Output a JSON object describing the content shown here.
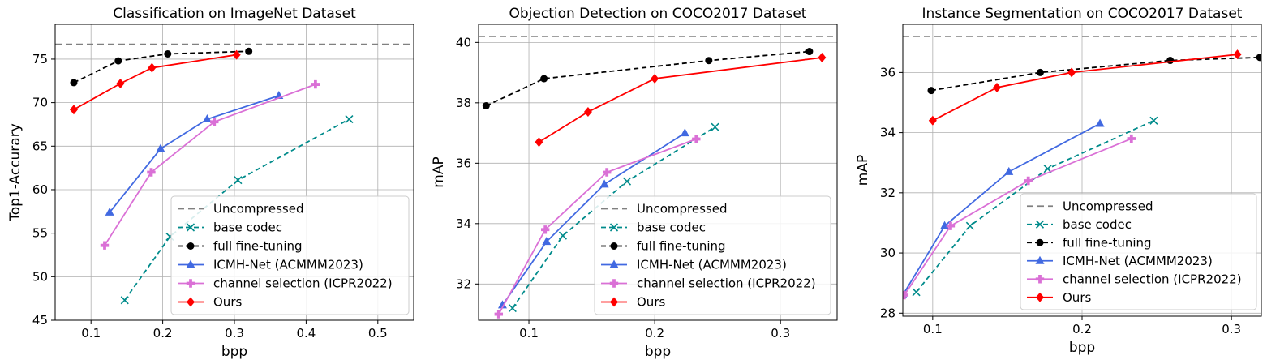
{
  "colors": {
    "uncompressed": "#808080",
    "base": "#008b8b",
    "full": "#000000",
    "icmh": "#4169e1",
    "channel": "#da70d6",
    "ours": "#ff0000"
  },
  "chart_data": [
    {
      "type": "line",
      "title": "Classification on ImageNet Dataset",
      "xlabel": "bpp",
      "ylabel": "Top1-Accurary",
      "xlim": [
        0.05,
        0.55
      ],
      "ylim": [
        45,
        79
      ],
      "xticks": [
        0.1,
        0.2,
        0.3,
        0.4,
        0.5
      ],
      "xtick_labels": [
        "0.1",
        "0.2",
        "0.3",
        "0.4",
        "0.5"
      ],
      "yticks": [
        45,
        50,
        55,
        60,
        65,
        70,
        75
      ],
      "ytick_labels": [
        "45",
        "50",
        "55",
        "60",
        "65",
        "70",
        "75"
      ],
      "grid": true,
      "legend_position": "lower-right",
      "series": [
        {
          "name": "Uncompressed",
          "style": "hline",
          "y": 76.7
        },
        {
          "name": "base codec",
          "x": [
            0.147,
            0.21,
            0.305,
            0.46
          ],
          "y": [
            47.3,
            54.6,
            61.1,
            68.1
          ]
        },
        {
          "name": "full fine-tuning",
          "x": [
            0.076,
            0.138,
            0.207,
            0.32
          ],
          "y": [
            72.3,
            74.8,
            75.6,
            75.9
          ]
        },
        {
          "name": "ICMH-Net (ACMMM2023)",
          "x": [
            0.126,
            0.197,
            0.262,
            0.362
          ],
          "y": [
            57.4,
            64.7,
            68.1,
            70.8
          ]
        },
        {
          "name": "channel selection (ICPR2022)",
          "x": [
            0.119,
            0.184,
            0.272,
            0.413
          ],
          "y": [
            53.6,
            62.0,
            67.8,
            72.1
          ]
        },
        {
          "name": "Ours",
          "x": [
            0.076,
            0.141,
            0.185,
            0.303
          ],
          "y": [
            69.2,
            72.2,
            74.0,
            75.5
          ]
        }
      ]
    },
    {
      "type": "line",
      "title": "Objection Detection on COCO2017 Dataset",
      "xlabel": "bpp",
      "ylabel": "mAP",
      "xlim": [
        0.06,
        0.345
      ],
      "ylim": [
        30.8,
        40.6
      ],
      "xticks": [
        0.1,
        0.2,
        0.3
      ],
      "xtick_labels": [
        "0.1",
        "0.2",
        "0.3"
      ],
      "yticks": [
        32,
        34,
        36,
        38,
        40
      ],
      "ytick_labels": [
        "32",
        "34",
        "36",
        "38",
        "40"
      ],
      "grid": true,
      "legend_position": "lower-right",
      "series": [
        {
          "name": "Uncompressed",
          "style": "hline",
          "y": 40.2
        },
        {
          "name": "base codec",
          "x": [
            0.087,
            0.127,
            0.178,
            0.248
          ],
          "y": [
            31.2,
            33.6,
            35.4,
            37.2
          ]
        },
        {
          "name": "full fine-tuning",
          "x": [
            0.066,
            0.112,
            0.243,
            0.323
          ],
          "y": [
            37.9,
            38.8,
            39.4,
            39.7
          ]
        },
        {
          "name": "ICMH-Net (ACMMM2023)",
          "x": [
            0.079,
            0.114,
            0.16,
            0.224
          ],
          "y": [
            31.3,
            33.4,
            35.3,
            37.0
          ]
        },
        {
          "name": "channel selection (ICPR2022)",
          "x": [
            0.076,
            0.113,
            0.162,
            0.233
          ],
          "y": [
            31.0,
            33.8,
            35.7,
            36.8
          ]
        },
        {
          "name": "Ours",
          "x": [
            0.108,
            0.147,
            0.2,
            0.333
          ],
          "y": [
            36.7,
            37.7,
            38.8,
            39.5
          ]
        }
      ]
    },
    {
      "type": "line",
      "title": "Instance Segmentation on COCO2017 Dataset",
      "xlabel": "bpp",
      "ylabel": "mAP",
      "xlim": [
        0.08,
        0.32
      ],
      "ylim": [
        27.9,
        37.6
      ],
      "xticks": [
        0.1,
        0.2,
        0.3
      ],
      "xtick_labels": [
        "0.1",
        "0.2",
        "0.3"
      ],
      "yticks": [
        28,
        30,
        32,
        34,
        36
      ],
      "ytick_labels": [
        "28",
        "30",
        "32",
        "34",
        "36"
      ],
      "grid": true,
      "legend_position": "lower-right",
      "series": [
        {
          "name": "Uncompressed",
          "style": "hline",
          "y": 37.2
        },
        {
          "name": "base codec",
          "x": [
            0.089,
            0.125,
            0.177,
            0.248
          ],
          "y": [
            28.7,
            30.9,
            32.8,
            34.4
          ]
        },
        {
          "name": "full fine-tuning",
          "x": [
            0.099,
            0.172,
            0.259,
            0.319
          ],
          "y": [
            35.4,
            36.0,
            36.4,
            36.5
          ]
        },
        {
          "name": "ICMH-Net (ACMMM2023)",
          "x": [
            0.08,
            0.108,
            0.151,
            0.212
          ],
          "y": [
            28.6,
            30.9,
            32.7,
            34.3
          ]
        },
        {
          "name": "channel selection (ICPR2022)",
          "x": [
            0.081,
            0.112,
            0.164,
            0.233
          ],
          "y": [
            28.6,
            30.9,
            32.4,
            33.8
          ]
        },
        {
          "name": "Ours",
          "x": [
            0.1,
            0.143,
            0.193,
            0.304
          ],
          "y": [
            34.4,
            35.5,
            36.0,
            36.6
          ]
        }
      ]
    }
  ]
}
